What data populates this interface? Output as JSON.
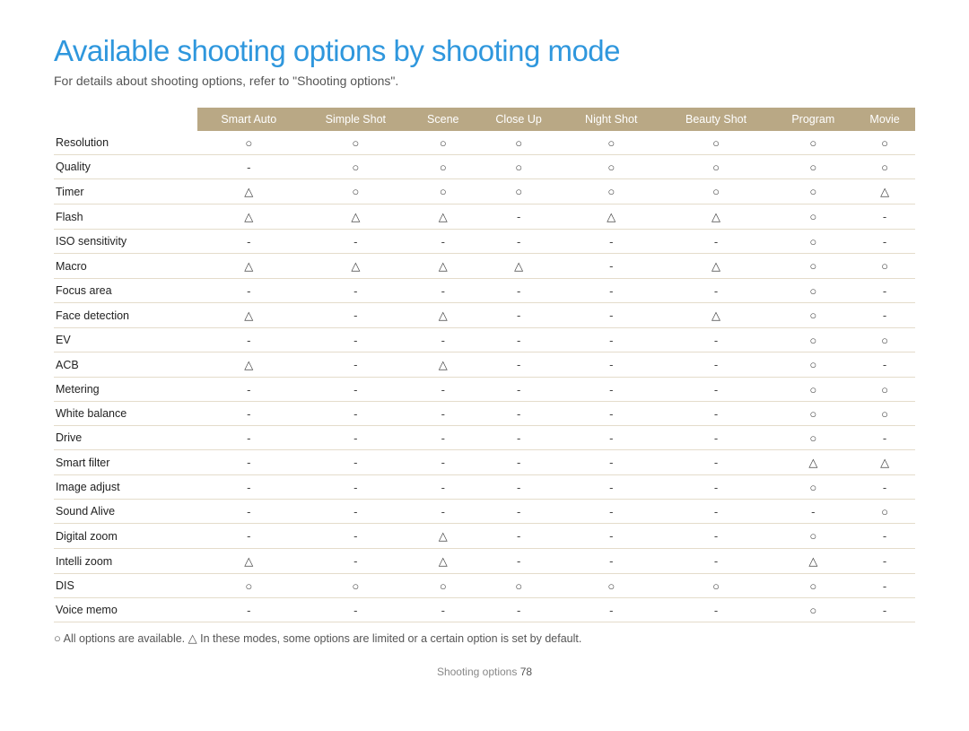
{
  "title": "Available shooting options by shooting mode",
  "subtitle": "For details about shooting options, refer to \"Shooting options\".",
  "columns": [
    "",
    "Smart Auto",
    "Simple Shot",
    "Scene",
    "Close Up",
    "Night Shot",
    "Beauty Shot",
    "Program",
    "Movie"
  ],
  "symbols": {
    "O": "○",
    "T": "△",
    "D": "-"
  },
  "rows": [
    {
      "label": "Resolution",
      "cells": [
        "O",
        "O",
        "O",
        "O",
        "O",
        "O",
        "O",
        "O"
      ]
    },
    {
      "label": "Quality",
      "cells": [
        "D",
        "O",
        "O",
        "O",
        "O",
        "O",
        "O",
        "O"
      ]
    },
    {
      "label": "Timer",
      "cells": [
        "T",
        "O",
        "O",
        "O",
        "O",
        "O",
        "O",
        "T"
      ]
    },
    {
      "label": "Flash",
      "cells": [
        "T",
        "T",
        "T",
        "D",
        "T",
        "T",
        "O",
        "D"
      ]
    },
    {
      "label": "ISO sensitivity",
      "cells": [
        "D",
        "D",
        "D",
        "D",
        "D",
        "D",
        "O",
        "D"
      ]
    },
    {
      "label": "Macro",
      "cells": [
        "T",
        "T",
        "T",
        "T",
        "D",
        "T",
        "O",
        "O"
      ]
    },
    {
      "label": "Focus area",
      "cells": [
        "D",
        "D",
        "D",
        "D",
        "D",
        "D",
        "O",
        "D"
      ]
    },
    {
      "label": "Face detection",
      "cells": [
        "T",
        "D",
        "T",
        "D",
        "D",
        "T",
        "O",
        "D"
      ]
    },
    {
      "label": "EV",
      "cells": [
        "D",
        "D",
        "D",
        "D",
        "D",
        "D",
        "O",
        "O"
      ]
    },
    {
      "label": "ACB",
      "cells": [
        "T",
        "D",
        "T",
        "D",
        "D",
        "D",
        "O",
        "D"
      ]
    },
    {
      "label": "Metering",
      "cells": [
        "D",
        "D",
        "D",
        "D",
        "D",
        "D",
        "O",
        "O"
      ]
    },
    {
      "label": "White balance",
      "cells": [
        "D",
        "D",
        "D",
        "D",
        "D",
        "D",
        "O",
        "O"
      ]
    },
    {
      "label": "Drive",
      "cells": [
        "D",
        "D",
        "D",
        "D",
        "D",
        "D",
        "O",
        "D"
      ]
    },
    {
      "label": "Smart filter",
      "cells": [
        "D",
        "D",
        "D",
        "D",
        "D",
        "D",
        "T",
        "T"
      ]
    },
    {
      "label": "Image adjust",
      "cells": [
        "D",
        "D",
        "D",
        "D",
        "D",
        "D",
        "O",
        "D"
      ]
    },
    {
      "label": "Sound Alive",
      "cells": [
        "D",
        "D",
        "D",
        "D",
        "D",
        "D",
        "D",
        "O"
      ]
    },
    {
      "label": "Digital zoom",
      "cells": [
        "D",
        "D",
        "T",
        "D",
        "D",
        "D",
        "O",
        "D"
      ]
    },
    {
      "label": "Intelli zoom",
      "cells": [
        "T",
        "D",
        "T",
        "D",
        "D",
        "D",
        "T",
        "D"
      ]
    },
    {
      "label": "DIS",
      "cells": [
        "O",
        "O",
        "O",
        "O",
        "O",
        "O",
        "O",
        "D"
      ]
    },
    {
      "label": "Voice memo",
      "cells": [
        "D",
        "D",
        "D",
        "D",
        "D",
        "D",
        "O",
        "D"
      ]
    }
  ],
  "legend_o": "All options are available.  ",
  "legend_t": "In these modes, some options are limited or a certain option is set by default.",
  "footer_label": "Shooting options ",
  "footer_page": "78",
  "colors": {
    "title": "#2f97dd",
    "header_bg": "#b9a885",
    "row_border": "#e4dccb"
  }
}
